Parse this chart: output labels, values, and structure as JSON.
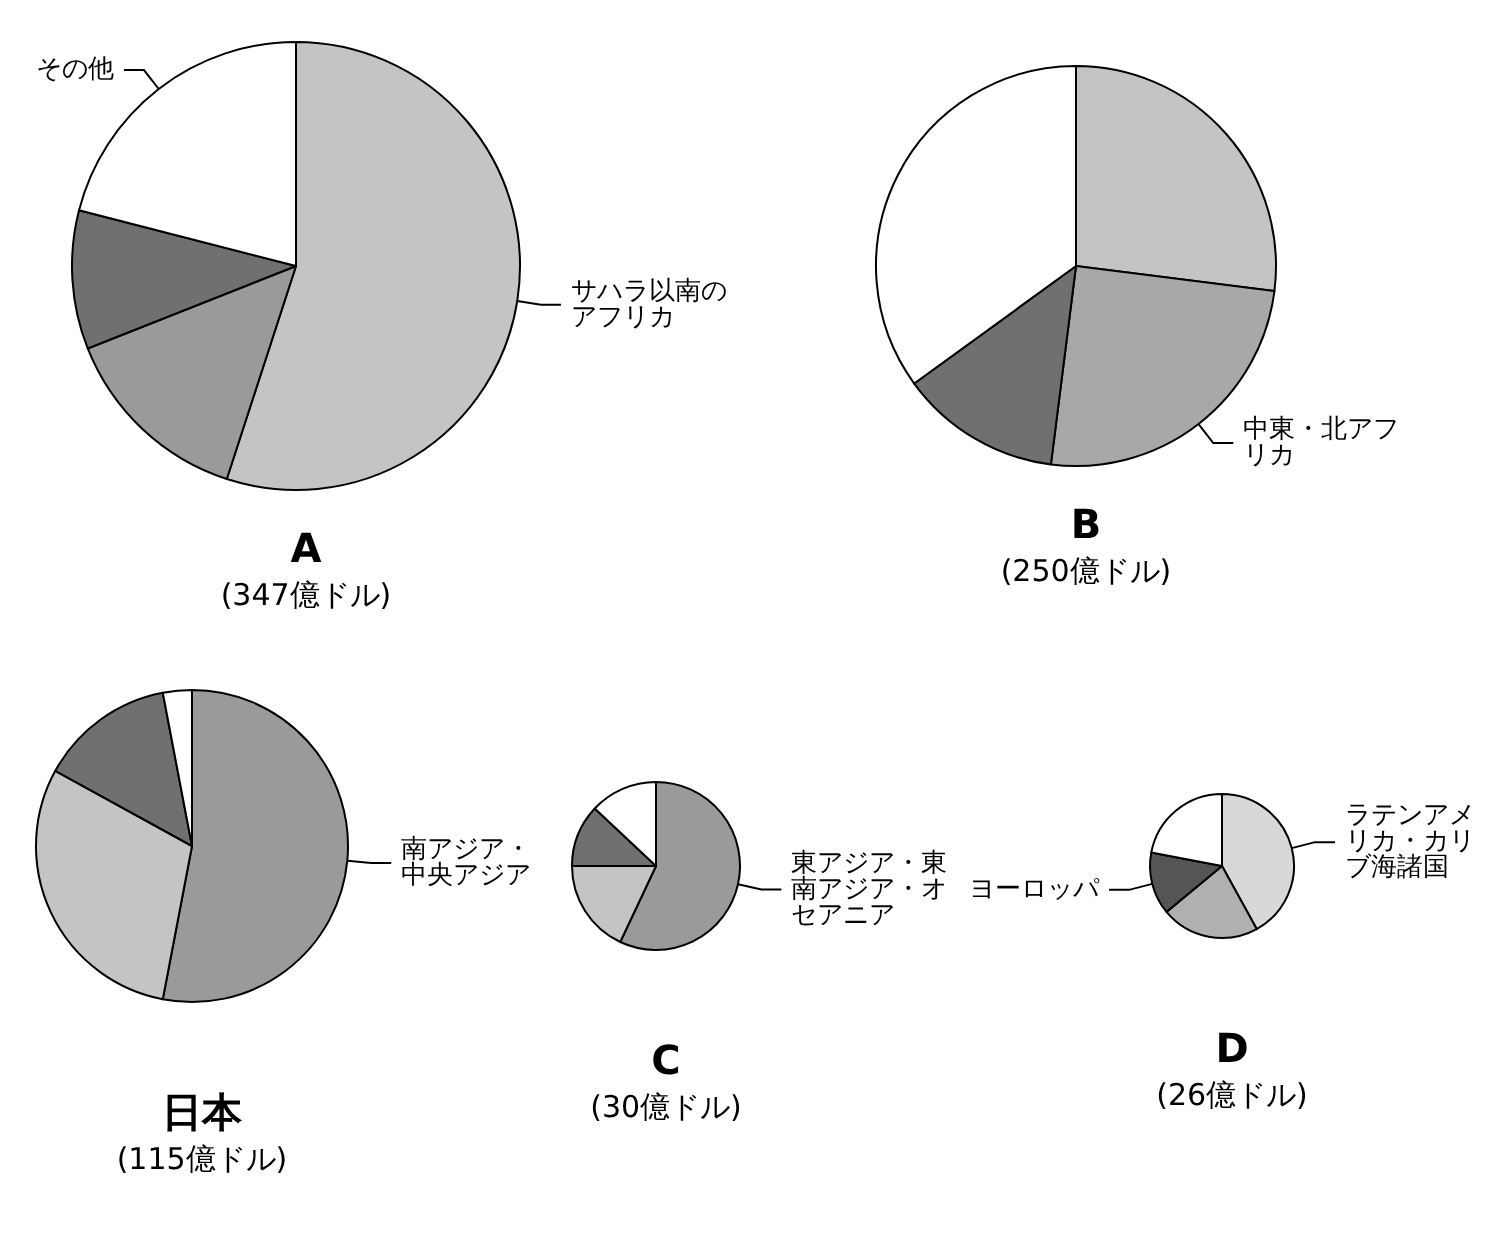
{
  "chart_data": [
    {
      "type": "pie",
      "title": "A",
      "subtitle": "(347億ドル)",
      "categories": [
        "サハラ以南のアフリカ",
        null,
        null,
        "その他"
      ],
      "values": [
        55,
        14,
        10,
        21
      ],
      "colors": [
        "#c4c4c4",
        "#9a9a9a",
        "#707070",
        "#ffffff"
      ]
    },
    {
      "type": "pie",
      "title": "B",
      "subtitle": "(250億ドル)",
      "categories": [
        null,
        "中東・北アフリカ",
        null,
        null
      ],
      "values": [
        27,
        25,
        13,
        35
      ],
      "colors": [
        "#c4c4c4",
        "#a8a8a8",
        "#707070",
        "#ffffff"
      ]
    },
    {
      "type": "pie",
      "title": "日本",
      "subtitle": "(115億ドル)",
      "categories": [
        "南アジア・中央アジア",
        null,
        null,
        null
      ],
      "values": [
        53,
        30,
        14,
        3
      ],
      "colors": [
        "#9a9a9a",
        "#c4c4c4",
        "#707070",
        "#ffffff"
      ]
    },
    {
      "type": "pie",
      "title": "C",
      "subtitle": "(30億ドル)",
      "categories": [
        "東アジア・東南アジア・オセアニア",
        null,
        null,
        null
      ],
      "values": [
        57,
        18,
        12,
        13
      ],
      "colors": [
        "#9a9a9a",
        "#c4c4c4",
        "#707070",
        "#ffffff"
      ]
    },
    {
      "type": "pie",
      "title": "D",
      "subtitle": "(26億ドル)",
      "categories": [
        "ラテンアメリカ・カリブ海諸国",
        null,
        "ヨーロッパ",
        null
      ],
      "values": [
        42,
        22,
        14,
        22
      ],
      "colors": [
        "#d8d8d8",
        "#b0b0b0",
        "#555555",
        "#ffffff"
      ]
    }
  ]
}
